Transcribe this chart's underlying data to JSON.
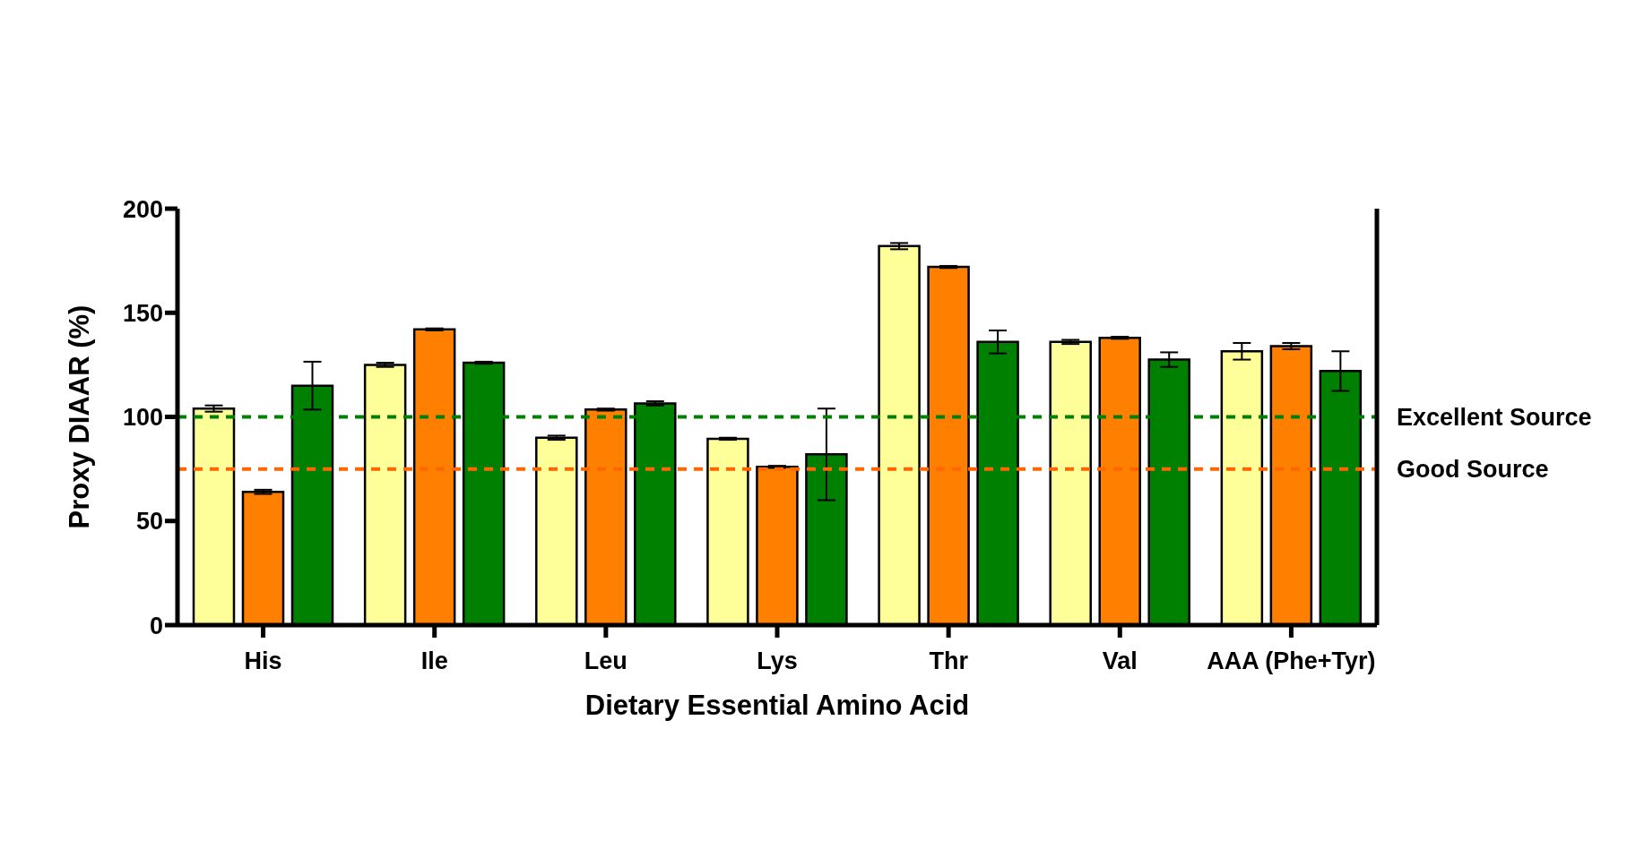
{
  "chart_data": {
    "type": "bar",
    "xlabel": "Dietary Essential Amino Acid",
    "ylabel": "Proxy DIAAR (%)",
    "categories": [
      "His",
      "Ile",
      "Leu",
      "Lys",
      "Thr",
      "Val",
      "AAA (Phe+Tyr)"
    ],
    "series": [
      {
        "color": "#ffff99",
        "values": [
          104,
          125,
          90,
          89.5,
          182,
          136,
          131.5
        ],
        "errors": [
          1.5,
          1,
          1,
          0.5,
          1.5,
          1,
          4
        ]
      },
      {
        "color": "#ff8000",
        "values": [
          64,
          142,
          103.5,
          76,
          172,
          138,
          134
        ],
        "errors": [
          1,
          0.5,
          0.5,
          0.5,
          0.5,
          0.5,
          1.5
        ]
      },
      {
        "color": "#008000",
        "values": [
          115,
          126,
          106.5,
          82,
          136,
          127.5,
          122
        ],
        "errors": [
          11.5,
          0.5,
          1,
          22,
          5.5,
          3.5,
          9.5
        ]
      }
    ],
    "ylim": [
      0,
      200
    ],
    "yticks": [
      0,
      50,
      100,
      150,
      200
    ],
    "grid": false,
    "legend": false,
    "ref_lines": [
      {
        "axis": "y",
        "value": 100,
        "label": "Excellent Source",
        "color": "#008000",
        "line_style": "dashed"
      },
      {
        "axis": "y",
        "value": 75,
        "label": "Good Source",
        "color": "#ff6600",
        "line_style": "dashed"
      }
    ]
  }
}
